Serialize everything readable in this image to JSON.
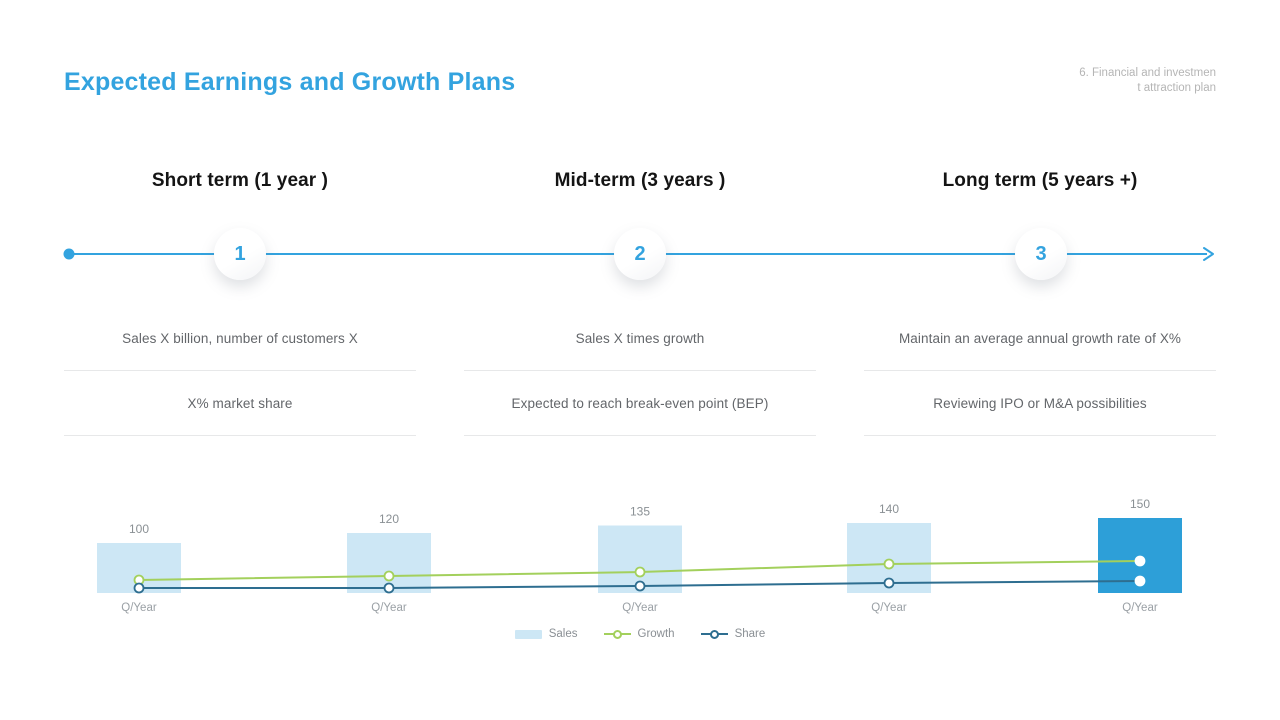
{
  "header": {
    "title": "Expected Earnings and Growth Plans",
    "corner_note_line1": "6. Financial and investmen",
    "corner_note_line2": "t attraction plan"
  },
  "phases": [
    {
      "number": "1",
      "title": "Short term (1 year )",
      "rows": [
        "Sales X billion, number of customers X",
        "X% market share"
      ]
    },
    {
      "number": "2",
      "title": "Mid-term (3 years )",
      "rows": [
        "Sales X times growth",
        "Expected to reach break-even point (BEP)"
      ]
    },
    {
      "number": "3",
      "title": "Long term (5 years +)",
      "rows": [
        "Maintain an average annual growth rate of X%",
        "Reviewing IPO or M&A possibilities"
      ]
    }
  ],
  "chart_data": {
    "type": "bar",
    "subtype": "combo-bar-line",
    "categories": [
      "Q/Year",
      "Q/Year",
      "Q/Year",
      "Q/Year",
      "Q/Year"
    ],
    "bar_series": {
      "name": "Sales",
      "values": [
        100,
        120,
        135,
        140,
        150
      ],
      "color": "#CDE7F5",
      "highlight_color": "#2D9FD8",
      "highlight_index": 4
    },
    "line_series": [
      {
        "name": "Growth",
        "values": [
          26,
          34,
          42,
          58,
          64
        ],
        "color": "#A3D05C"
      },
      {
        "name": "Share",
        "values": [
          10,
          10,
          14,
          20,
          24
        ],
        "color": "#2E6E90"
      }
    ],
    "value_labels": [
      "100",
      "120",
      "135",
      "140",
      "150"
    ],
    "title": "",
    "xlabel": "",
    "ylabel": "",
    "ylim": [
      0,
      160
    ],
    "grid": false,
    "axis_lines": "none",
    "legend": [
      "Sales",
      "Growth",
      "Share"
    ],
    "legend_position": "bottom"
  },
  "colors": {
    "accent_blue": "#33A3DF",
    "bar_light": "#CDE7F5",
    "bar_highlight": "#2D9FD8",
    "growth_line": "#A3D05C",
    "share_line": "#2E6E90",
    "divider": "#e7e8e9"
  }
}
